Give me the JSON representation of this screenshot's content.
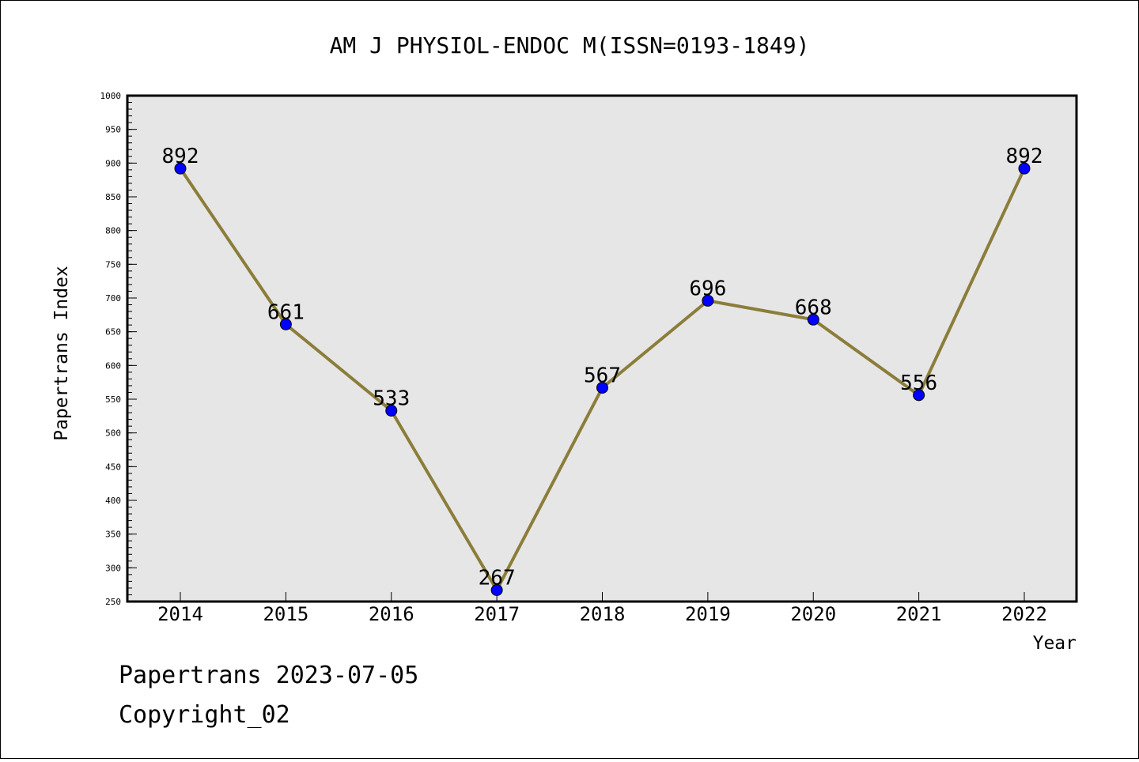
{
  "chart_data": {
    "type": "line",
    "title": "AM J PHYSIOL-ENDOC M(ISSN=0193-1849)",
    "xlabel": "Year",
    "ylabel": "Papertrans Index",
    "categories": [
      "2014",
      "2015",
      "2016",
      "2017",
      "2018",
      "2019",
      "2020",
      "2021",
      "2022"
    ],
    "values": [
      892,
      661,
      533,
      267,
      567,
      696,
      668,
      556,
      892
    ],
    "data_labels": [
      "892",
      "661",
      "533",
      "267",
      "567",
      "696",
      "668",
      "556",
      "892"
    ],
    "ylim": [
      250,
      1000
    ],
    "yticks": [
      250,
      300,
      350,
      400,
      450,
      500,
      550,
      600,
      650,
      700,
      750,
      800,
      850,
      900,
      950,
      1000
    ],
    "ytick_labels": [
      "250",
      "300",
      "350",
      "400",
      "450",
      "500",
      "550",
      "600",
      "650",
      "700",
      "750",
      "800",
      "850",
      "900",
      "950",
      "1000"
    ],
    "grid": false,
    "legend": "none",
    "colors": {
      "line": "#8b7d3a",
      "marker": "#0000ff",
      "plot_background": "#e6e6e6"
    }
  },
  "footer": {
    "source": "Papertrans 2023-07-05",
    "copyright": "Copyright_02"
  }
}
